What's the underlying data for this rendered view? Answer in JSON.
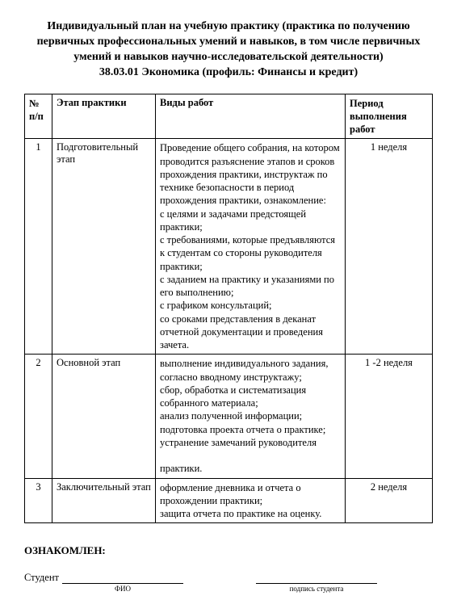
{
  "title_lines": [
    "Индивидуальный план на учебную практику (практика по получению",
    "первичных профессиональных умений и навыков, в том числе первичных",
    "умений и навыков научно-исследовательской деятельности)",
    "38.03.01 Экономика (профиль: Финансы и кредит)"
  ],
  "columns": {
    "num": "№\nп/п",
    "stage": "Этап практики",
    "work": "Виды работ",
    "period": "Период\nвыполнения работ"
  },
  "rows": [
    {
      "num": "1",
      "stage": "Подготовительный этап",
      "work": "Проведение общего собрания, на котором проводится разъяснение этапов и сроков прохождения практики, инструктаж по технике безопасности в период прохождения практики, ознакомление:\nс целями и задачами предстоящей практики;\nс требованиями, которые предъявляются к студентам со стороны руководителя практики;\nс заданием на практику и указаниями по его выполнению;\nс графиком консультаций;\nсо сроками представления в деканат отчетной документации и проведения зачета.",
      "period": "1 неделя"
    },
    {
      "num": "2",
      "stage": "Основной этап",
      "work": "выполнение индивидуального задания, согласно вводному инструктажу;\nсбор, обработка и систематизация собранного материала;\nанализ полученной информации;\nподготовка проекта отчета о практике;\nустранение замечаний руководителя\n\nпрактики.",
      "period": "1 -2 неделя"
    },
    {
      "num": "3",
      "stage": "Заключительный этап",
      "work": "оформление дневника и отчета о прохождении практики;\nзащита отчета по практике на оценку.",
      "period": "2 неделя"
    }
  ],
  "footer": {
    "ack": "ОЗНАКОМЛЕН:",
    "student_label": "Студент",
    "fio_caption": "ФИО",
    "sign_caption": "подпись студента"
  }
}
